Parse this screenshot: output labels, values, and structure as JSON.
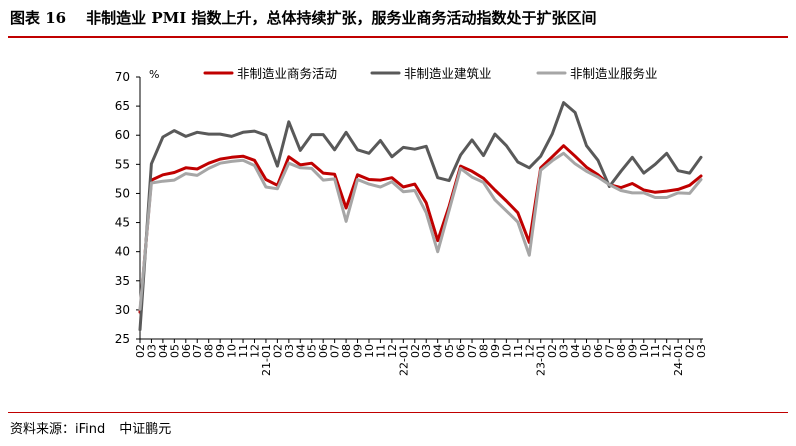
{
  "figure": {
    "label": "图表 16",
    "title": "非制造业 PMI 指数上升，总体持续扩张，服务业商务活动指数处于扩张区间"
  },
  "source": {
    "text": "资料来源：iFind",
    "org": "中证鹏元"
  },
  "chart_data": {
    "type": "line",
    "unit_label": "%",
    "ylim": [
      25,
      70
    ],
    "yticks": [
      25,
      30,
      35,
      40,
      45,
      50,
      55,
      60,
      65,
      70
    ],
    "grid": false,
    "legend_position": "top",
    "x_labels": [
      "02",
      "03",
      "04",
      "05",
      "06",
      "07",
      "08",
      "09",
      "10",
      "11",
      "12",
      "21-01",
      "02",
      "03",
      "04",
      "05",
      "06",
      "07",
      "08",
      "09",
      "10",
      "11",
      "12",
      "22-01",
      "02",
      "03",
      "04",
      "05",
      "06",
      "07",
      "08",
      "09",
      "10",
      "11",
      "12",
      "23-01",
      "02",
      "03",
      "04",
      "05",
      "06",
      "07",
      "08",
      "09",
      "10",
      "11",
      "12",
      "24-01",
      "02",
      "03"
    ],
    "series": [
      {
        "name": "非制造业商务活动",
        "color": "#c00000",
        "width": 3,
        "values": [
          29.6,
          52.3,
          53.2,
          53.6,
          54.4,
          54.2,
          55.2,
          55.9,
          56.2,
          56.4,
          55.7,
          52.4,
          51.4,
          56.3,
          54.9,
          55.2,
          53.5,
          53.3,
          47.5,
          53.2,
          52.4,
          52.3,
          52.7,
          51.1,
          51.6,
          48.4,
          41.9,
          47.8,
          54.7,
          53.8,
          52.6,
          50.6,
          48.7,
          46.7,
          41.6,
          54.4,
          56.3,
          58.2,
          56.4,
          54.5,
          53.2,
          51.5,
          51.0,
          51.7,
          50.6,
          50.2,
          50.4,
          50.7,
          51.4,
          53.0
        ]
      },
      {
        "name": "非制造业建筑业",
        "color": "#595959",
        "width": 3,
        "values": [
          26.6,
          55.1,
          59.7,
          60.8,
          59.8,
          60.5,
          60.2,
          60.2,
          59.8,
          60.5,
          60.7,
          60.0,
          54.7,
          62.3,
          57.4,
          60.1,
          60.1,
          57.5,
          60.5,
          57.5,
          56.9,
          59.1,
          56.3,
          57.9,
          57.6,
          58.1,
          52.7,
          52.2,
          56.6,
          59.2,
          56.5,
          60.2,
          58.2,
          55.4,
          54.4,
          56.4,
          60.2,
          65.6,
          63.9,
          58.2,
          55.7,
          51.2,
          53.8,
          56.2,
          53.5,
          55.0,
          56.9,
          53.9,
          53.5,
          56.2
        ]
      },
      {
        "name": "非制造业服务业",
        "color": "#a6a6a6",
        "width": 3,
        "values": [
          30.1,
          51.8,
          52.1,
          52.3,
          53.4,
          53.1,
          54.3,
          55.2,
          55.5,
          55.7,
          54.8,
          51.1,
          50.8,
          55.2,
          54.4,
          54.3,
          52.3,
          52.5,
          45.2,
          52.4,
          51.6,
          51.1,
          52.0,
          50.3,
          50.5,
          46.7,
          40.0,
          47.1,
          54.3,
          52.8,
          51.9,
          48.9,
          47.0,
          45.1,
          39.4,
          54.0,
          55.6,
          56.9,
          55.1,
          53.8,
          52.8,
          51.5,
          50.5,
          50.1,
          50.1,
          49.3,
          49.3,
          50.1,
          50.0,
          52.4
        ]
      }
    ]
  }
}
